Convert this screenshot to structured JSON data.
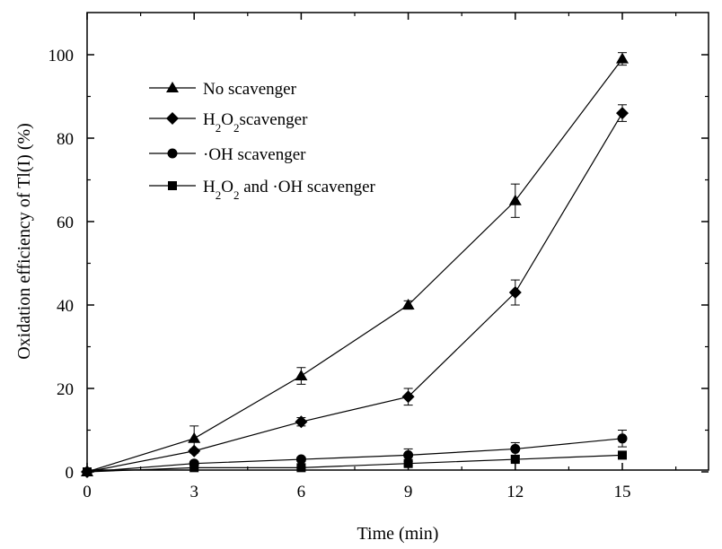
{
  "chart_data": {
    "type": "line",
    "title": "",
    "xlabel": "Time (min)",
    "ylabel": "Oxidation efficiency of Tl(I) (%)",
    "xlim": [
      0,
      18
    ],
    "ylim": [
      0,
      105
    ],
    "xticks": [
      0,
      3,
      6,
      9,
      12,
      15,
      18
    ],
    "yticks": [
      0,
      20,
      40,
      60,
      80,
      100
    ],
    "legend_position": "top-left",
    "x": [
      0,
      3,
      6,
      9,
      12,
      15
    ],
    "series": [
      {
        "name": "No scavenger",
        "name_parts": [
          {
            "t": "No scavenger",
            "sub": false
          }
        ],
        "marker": "triangle",
        "values": [
          0,
          8,
          23,
          40,
          65,
          99
        ],
        "errors": [
          0,
          3,
          2,
          1,
          4,
          1.5
        ]
      },
      {
        "name": "H2O2scavenger",
        "name_parts": [
          {
            "t": "H",
            "sub": false
          },
          {
            "t": "2",
            "sub": true
          },
          {
            "t": "O",
            "sub": false
          },
          {
            "t": "2",
            "sub": true
          },
          {
            "t": "scavenger",
            "sub": false
          }
        ],
        "marker": "diamond",
        "values": [
          0,
          5,
          12,
          18,
          43,
          86
        ],
        "errors": [
          0,
          0.5,
          1,
          2,
          3,
          2
        ]
      },
      {
        "name": "·OH scavenger",
        "name_parts": [
          {
            "t": "·OH scavenger",
            "sub": false
          }
        ],
        "marker": "circle",
        "values": [
          0,
          2,
          3,
          4,
          5.5,
          8
        ],
        "errors": [
          0,
          0.5,
          0.5,
          1.5,
          1.5,
          2
        ]
      },
      {
        "name": "H2O2 and ·OH scavenger",
        "name_parts": [
          {
            "t": "H",
            "sub": false
          },
          {
            "t": "2",
            "sub": true
          },
          {
            "t": "O",
            "sub": false
          },
          {
            "t": "2",
            "sub": true
          },
          {
            "t": " and ·OH scavenger",
            "sub": false
          }
        ],
        "marker": "square",
        "values": [
          0,
          1,
          1,
          2,
          3,
          4
        ],
        "errors": [
          0,
          0.3,
          0.3,
          0.5,
          0.5,
          0.5
        ]
      }
    ]
  }
}
